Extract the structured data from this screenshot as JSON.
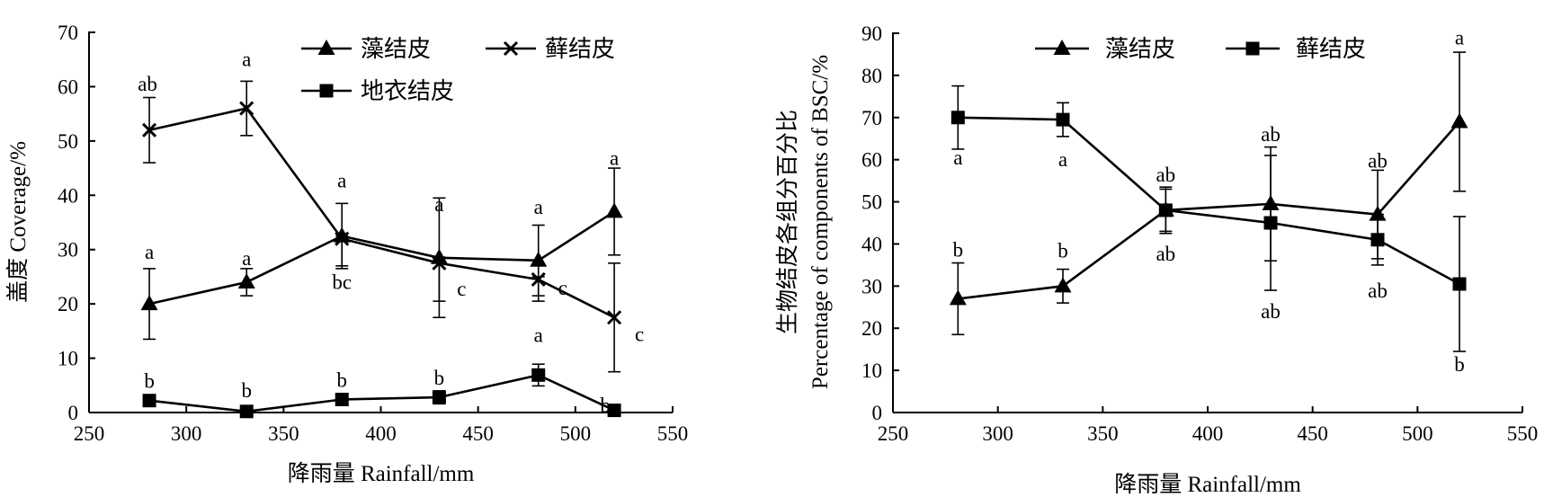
{
  "chart_data": [
    {
      "type": "line",
      "title": "",
      "xlabel": "降雨量 Rainfall/mm",
      "ylabel": "盖度 Coverage/%",
      "xlim": [
        250,
        550
      ],
      "ylim": [
        0,
        70
      ],
      "x_ticks": [
        "250",
        "300",
        "350",
        "400",
        "450",
        "500",
        "550"
      ],
      "y_ticks": [
        "0",
        "10",
        "20",
        "30",
        "40",
        "50",
        "60",
        "70"
      ],
      "grid": false,
      "legend_placement": "top-right",
      "x": [
        281,
        331,
        380,
        430,
        481,
        520
      ],
      "series": [
        {
          "name": "藻结皮",
          "marker": "triangle",
          "values": [
            20,
            24,
            32.5,
            28.5,
            28,
            37
          ],
          "err_plus": [
            6.5,
            2.5,
            6,
            11,
            6.5,
            8
          ],
          "err_minus": [
            6.5,
            2.5,
            6,
            11,
            6.5,
            8
          ],
          "labels": [
            "a",
            "a",
            "a",
            "a",
            "a",
            "a"
          ]
        },
        {
          "name": "藓结皮",
          "marker": "x",
          "values": [
            52,
            56,
            32,
            27.5,
            24.5,
            17.5
          ],
          "err_plus": [
            6,
            5,
            0.5,
            0.5,
            0.5,
            10
          ],
          "err_minus": [
            6,
            5,
            5,
            7,
            4,
            10
          ],
          "labels": [
            "ab",
            "a",
            "bc",
            "c",
            "c",
            "c"
          ]
        },
        {
          "name": "地衣结皮",
          "marker": "square",
          "values": [
            2.2,
            0.2,
            2.4,
            2.8,
            6.9,
            0.4
          ],
          "err_plus": [
            0.5,
            0.3,
            1,
            1.2,
            2,
            0.4
          ],
          "err_minus": [
            0.5,
            0.3,
            1,
            1.2,
            2,
            0.4
          ],
          "labels": [
            "b",
            "b",
            "b",
            "b",
            "a",
            "b"
          ]
        }
      ]
    },
    {
      "type": "line",
      "title": "",
      "xlabel": "降雨量 Rainfall/mm",
      "ylabel": "生物结皮各组分百分比",
      "ylabel_line2": "Percentage of components of BSC/%",
      "xlim": [
        250,
        550
      ],
      "ylim": [
        0,
        90
      ],
      "x_ticks": [
        "250",
        "300",
        "350",
        "400",
        "450",
        "500",
        "550"
      ],
      "y_ticks": [
        "0",
        "10",
        "20",
        "30",
        "40",
        "50",
        "60",
        "70",
        "80",
        "90"
      ],
      "grid": false,
      "legend_placement": "top",
      "x": [
        281,
        331,
        380,
        430,
        481,
        520
      ],
      "series": [
        {
          "name": "藻结皮",
          "marker": "triangle",
          "values": [
            27,
            30,
            48,
            49.5,
            47,
            69
          ],
          "err_plus": [
            8.5,
            4,
            5,
            13.5,
            10.5,
            16.5
          ],
          "err_minus": [
            8.5,
            4,
            5,
            13.5,
            10.5,
            16.5
          ],
          "labels": [
            "b",
            "b",
            "ab",
            "ab",
            "ab",
            "a"
          ]
        },
        {
          "name": "藓结皮",
          "marker": "square",
          "values": [
            70,
            69.5,
            48,
            45,
            41,
            30.5
          ],
          "err_plus": [
            7.5,
            4,
            5.5,
            16,
            6,
            16
          ],
          "err_minus": [
            7.5,
            4,
            5.5,
            16,
            6,
            16
          ],
          "labels": [
            "a",
            "a",
            "ab",
            "ab",
            "ab",
            "b"
          ]
        }
      ]
    }
  ]
}
